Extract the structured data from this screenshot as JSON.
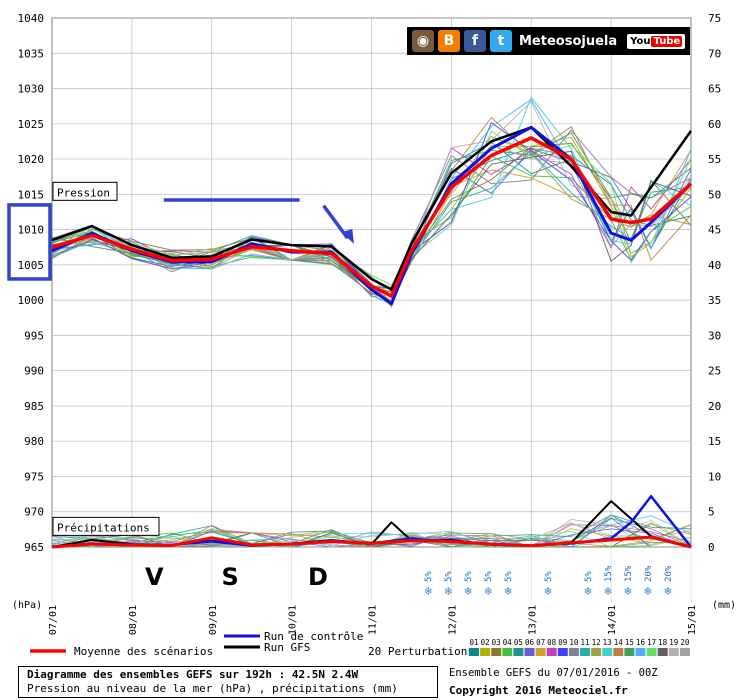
{
  "chart_data": {
    "type": "line",
    "y_left_label": "(hPa)",
    "y_right_label": "(mm)",
    "y_left_ticks": [
      965,
      970,
      975,
      980,
      985,
      990,
      995,
      1000,
      1005,
      1010,
      1015,
      1020,
      1025,
      1030,
      1035,
      1040
    ],
    "y_right_ticks": [
      0,
      5,
      10,
      15,
      20,
      25,
      30,
      35,
      40,
      45,
      50,
      55,
      60,
      65,
      70,
      75
    ],
    "ylim_hpa": [
      965,
      1040
    ],
    "ylim_mm": [
      0,
      75
    ],
    "x_ticks": [
      "07/01",
      "08/01",
      "09/01",
      "10/01",
      "11/01",
      "12/01",
      "13/01",
      "14/01",
      "15/01"
    ],
    "grid": true,
    "panel_labels": {
      "pressure": "Pression",
      "precip": "Précipitations"
    },
    "day_letters": [
      {
        "text": "V",
        "x": 1.28
      },
      {
        "text": "S",
        "x": 2.23
      },
      {
        "text": "D",
        "x": 3.33
      }
    ],
    "snow_percent": [
      {
        "x": 4.71,
        "label": "5%"
      },
      {
        "x": 4.96,
        "label": "5%"
      },
      {
        "x": 5.21,
        "label": "5%"
      },
      {
        "x": 5.46,
        "label": "5%"
      },
      {
        "x": 5.71,
        "label": "5%"
      },
      {
        "x": 6.21,
        "label": "5%"
      },
      {
        "x": 6.71,
        "label": "5%"
      },
      {
        "x": 6.96,
        "label": "15%"
      },
      {
        "x": 7.21,
        "label": "15%"
      },
      {
        "x": 7.46,
        "label": "20%"
      },
      {
        "x": 7.71,
        "label": "20%"
      }
    ],
    "series": [
      {
        "name": "Moyenne des scénarios",
        "color": "#ff0000",
        "width": 3.5,
        "x": [
          0,
          0.5,
          1,
          1.5,
          2,
          2.5,
          3,
          3.5,
          4,
          4.25,
          4.5,
          5,
          5.5,
          6,
          6.5,
          7,
          7.25,
          7.5,
          8
        ],
        "y": [
          1007.5,
          1009.2,
          1007.2,
          1005.6,
          1005.8,
          1007.6,
          1007,
          1006.6,
          1002,
          1000.6,
          1007,
          1016,
          1020.5,
          1023,
          1020,
          1011.5,
          1011,
          1011.5,
          1016.5
        ],
        "precip_x": [
          0,
          0.5,
          1,
          1.5,
          2,
          2.5,
          3,
          3.5,
          4,
          4.5,
          5,
          5.5,
          6,
          6.5,
          7,
          7.5,
          8
        ],
        "precip_y": [
          0,
          0.4,
          0.3,
          0.2,
          1.3,
          0.3,
          0.4,
          0.8,
          0.5,
          0.9,
          0.8,
          0.4,
          0.2,
          0.6,
          1,
          1.4,
          0
        ]
      },
      {
        "name": "Run de contrôle",
        "color": "#1010e0",
        "width": 3,
        "x": [
          0,
          0.5,
          1,
          1.5,
          2,
          2.5,
          3,
          3.5,
          4,
          4.25,
          4.5,
          5,
          5.5,
          6,
          6.5,
          7,
          7.25,
          7.5,
          8
        ],
        "y": [
          1007,
          1009.5,
          1007,
          1005.4,
          1005.4,
          1008,
          1006.8,
          1006.8,
          1001.5,
          999.5,
          1006.5,
          1016.5,
          1021.5,
          1024.5,
          1020,
          1009.5,
          1008.5,
          1011,
          1016.5
        ],
        "precip_x": [
          0,
          0.5,
          1,
          1.5,
          2,
          2.5,
          3,
          3.5,
          4,
          4.5,
          5,
          5.5,
          6,
          6.5,
          7,
          7.25,
          7.5,
          8
        ],
        "precip_y": [
          0,
          0.5,
          0.3,
          0.3,
          0.8,
          0.2,
          0.4,
          0.9,
          0.5,
          1.2,
          0.7,
          0.4,
          0.2,
          0.5,
          1.2,
          3.5,
          7.2,
          0
        ]
      },
      {
        "name": "Run GFS",
        "color": "#000000",
        "width": 2.5,
        "x": [
          0,
          0.5,
          1,
          1.5,
          2,
          2.5,
          3,
          3.5,
          4,
          4.25,
          4.5,
          5,
          5.5,
          6,
          6.5,
          7,
          7.25,
          7.5,
          8
        ],
        "y": [
          1008.5,
          1010.5,
          1007.8,
          1006,
          1006.2,
          1008.6,
          1007.8,
          1007.6,
          1003,
          1001.5,
          1008,
          1018,
          1022.5,
          1024.5,
          1019,
          1012.5,
          1012,
          1016,
          1024
        ],
        "precip_x": [
          0,
          0.5,
          1,
          1.5,
          2,
          2.5,
          3,
          3.5,
          4,
          4.25,
          4.5,
          5,
          5.5,
          6,
          6.5,
          7,
          7.25,
          7.5,
          8
        ],
        "precip_y": [
          0,
          1,
          0.4,
          0.3,
          0.9,
          0.2,
          0.5,
          1,
          0.4,
          3.5,
          0.9,
          1,
          0.3,
          0.2,
          0.6,
          6.5,
          4,
          1.5,
          0
        ]
      }
    ],
    "perturbation_colors": [
      "#0a8a8a",
      "#b0b000",
      "#8a7a2a",
      "#40c040",
      "#209090",
      "#6060d0",
      "#d0a030",
      "#c040c0",
      "#4040ff",
      "#8080a0",
      "#20b0b0",
      "#a0a040",
      "#40d0d0",
      "#c08040",
      "#40a060",
      "#50b0ff",
      "#60e060",
      "#606060",
      "#b0b0b0",
      "#a0a0a0"
    ],
    "legend": {
      "mean": "Moyenne des scénarios",
      "control": "Run de contrôle",
      "gfs": "Run GFS",
      "perturbations": "20 Perturbations",
      "perturbation_ids": [
        "01",
        "02",
        "03",
        "04",
        "05",
        "06",
        "07",
        "08",
        "09",
        "10",
        "11",
        "12",
        "13",
        "14",
        "15",
        "16",
        "17",
        "18",
        "19",
        "20"
      ]
    }
  },
  "banner": {
    "title": "Meteosojuela",
    "youtube": "You",
    "youtube_tube": "Tube"
  },
  "footer": {
    "title": "Diagramme des ensembles GEFS sur 192h : 42.5N 2.4W",
    "subtitle": "Pression au niveau de la mer (hPa) , précipitations (mm)",
    "ensemble_label": "Ensemble GEFS du 07/01/2016 - 00Z",
    "copyright": "Copyright 2016 Meteociel.fr"
  },
  "annotations": {
    "highlight_color": "#3344cc"
  }
}
